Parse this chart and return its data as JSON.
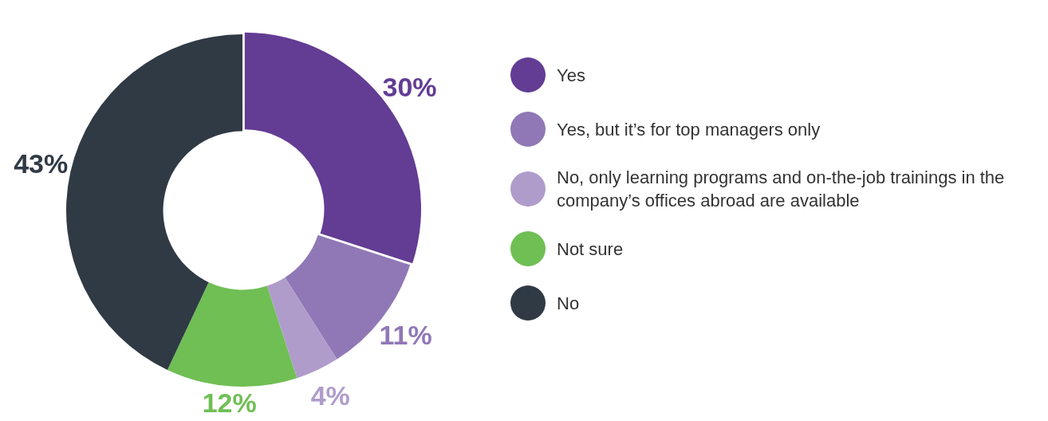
{
  "chart_data": {
    "type": "donut",
    "categories": [
      "Yes",
      "Yes, but it’s for top managers only",
      "No, only learning programs and on-the-job trainings in the company’s offices abroad are available",
      "Not sure",
      "No"
    ],
    "values": [
      30,
      11,
      4,
      12,
      43
    ],
    "colors": [
      "#633c94",
      "#9078b6",
      "#b09ccb",
      "#6fbf54",
      "#303a45"
    ],
    "value_labels": [
      "30%",
      "11%",
      "4%",
      "12%",
      "43%"
    ],
    "legend": "right"
  }
}
